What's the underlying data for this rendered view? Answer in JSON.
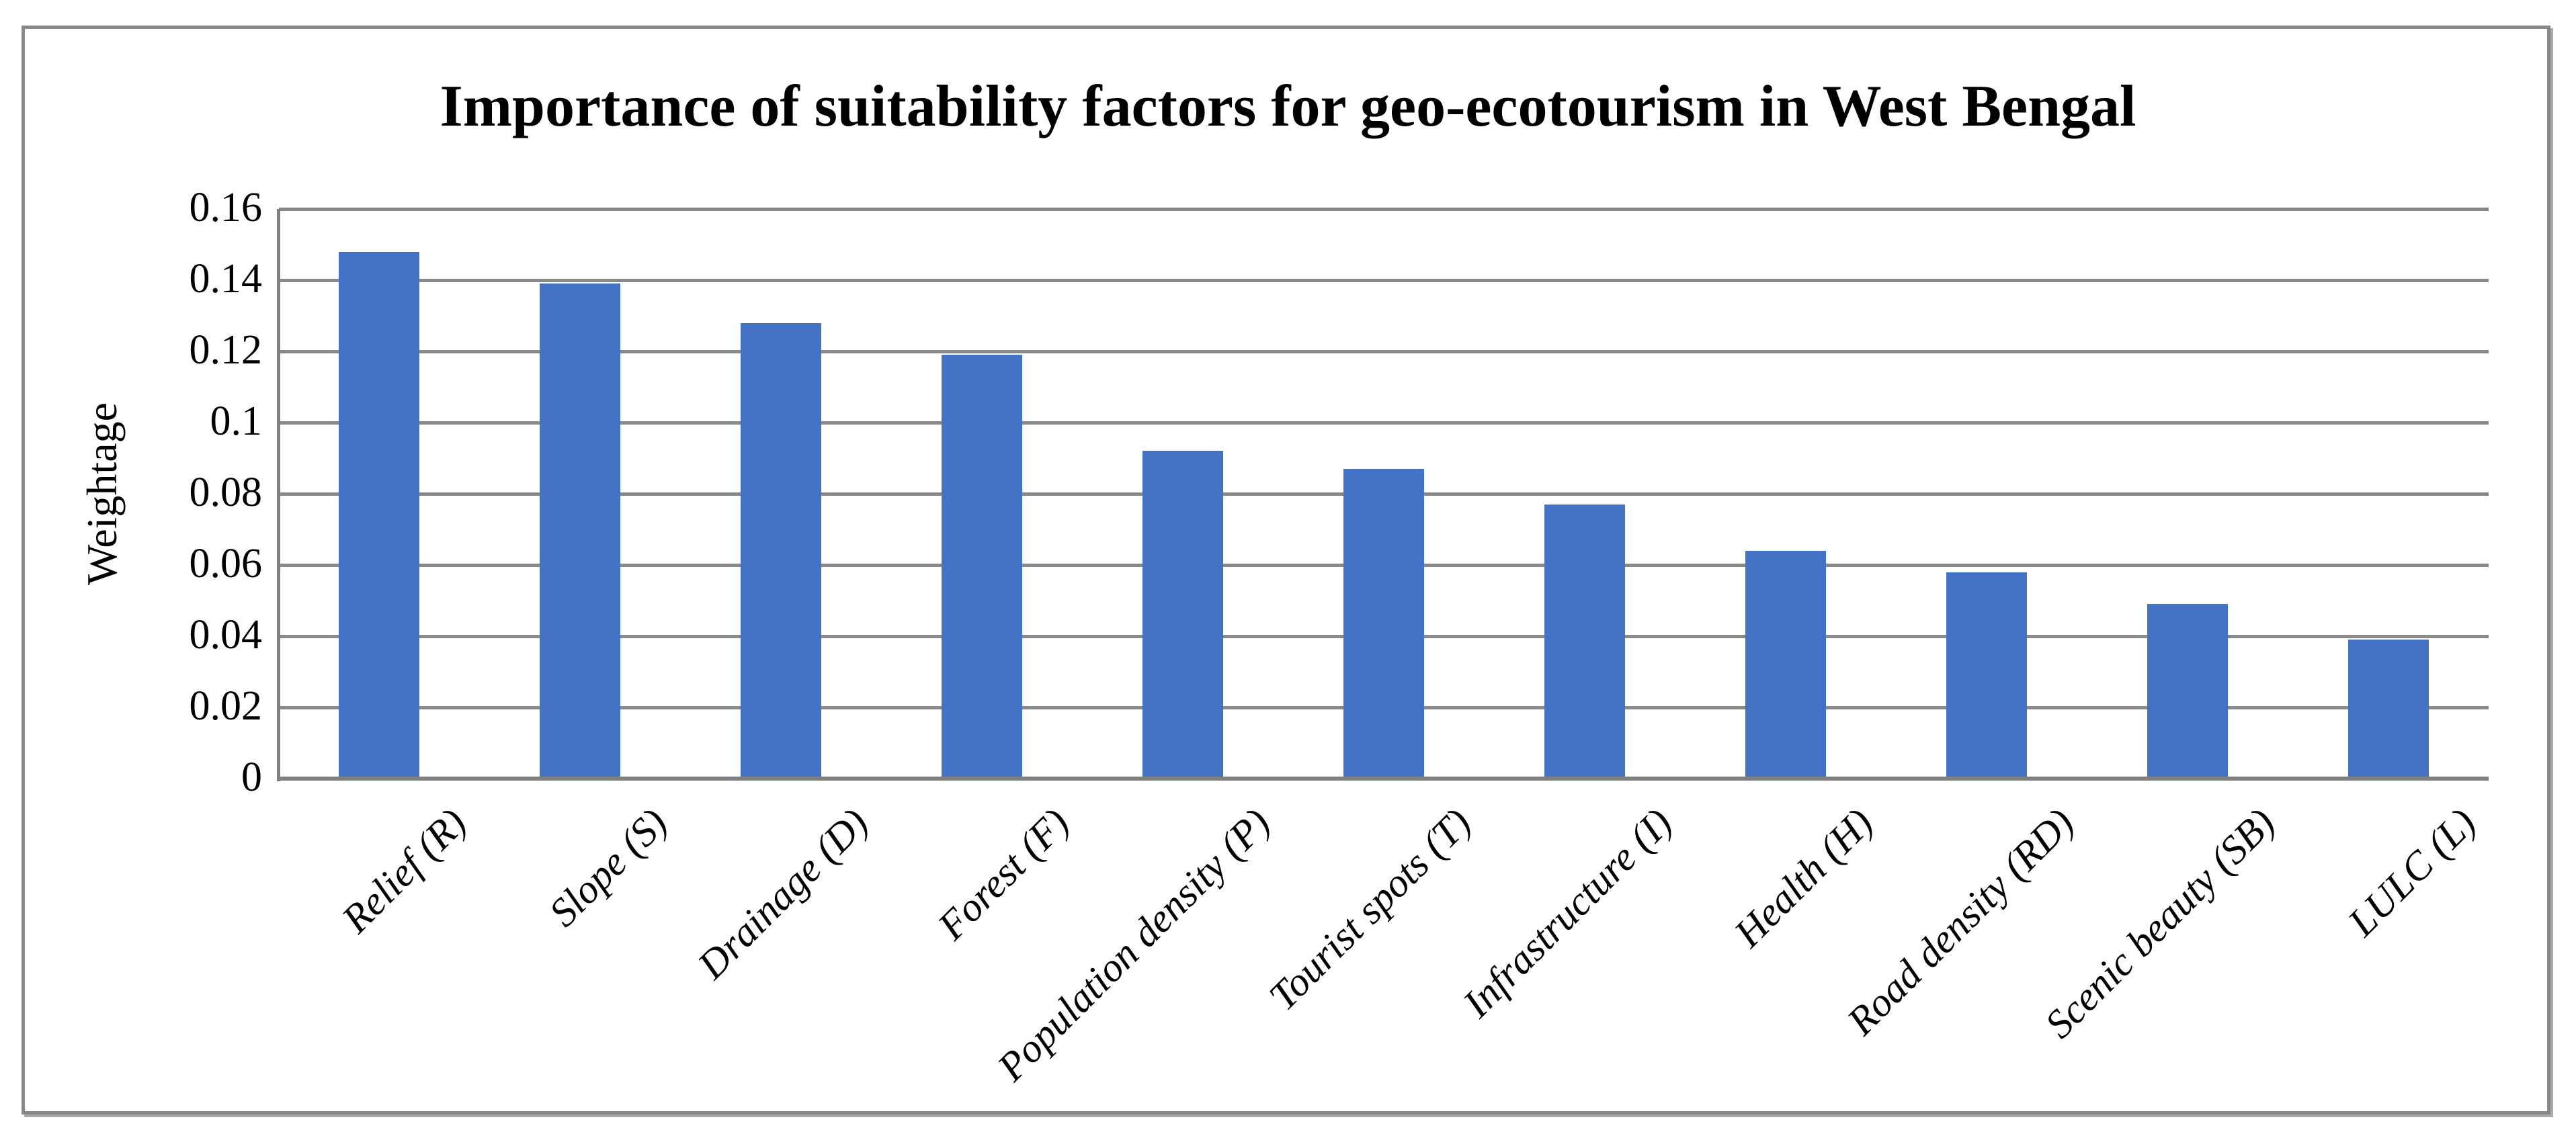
{
  "title": "Importance of suitability factors for geo-ecotourism in West Bengal",
  "chart_data": {
    "type": "bar",
    "title": "Importance of suitability factors for geo-ecotourism in West Bengal",
    "categories": [
      "Relief (R)",
      "Slope (S)",
      "Drainage (D)",
      "Forest (F)",
      "Population density (P)",
      "Tourist spots (T)",
      "Infrastructure (I)",
      "Health (H)",
      "Road density (RD)",
      "Scenic beauty (SB)",
      "LULC (L)"
    ],
    "values": [
      0.148,
      0.139,
      0.128,
      0.119,
      0.092,
      0.087,
      0.077,
      0.064,
      0.058,
      0.049,
      0.039
    ],
    "xlabel": "",
    "ylabel": "Weightage",
    "ylim": [
      0,
      0.16
    ],
    "ytick_step": 0.02,
    "yticks": [
      "0.16",
      "0.14",
      "0.12",
      "0.1",
      "0.08",
      "0.06",
      "0.04",
      "0.02",
      "0"
    ],
    "grid": true,
    "legend": "none",
    "colors": {
      "bar": "#4472C4",
      "gridline": "#898989",
      "axis_line": "#7F7F7F",
      "frame_border": "#898989",
      "background": "#FFFFFF",
      "text": "#000000"
    }
  }
}
